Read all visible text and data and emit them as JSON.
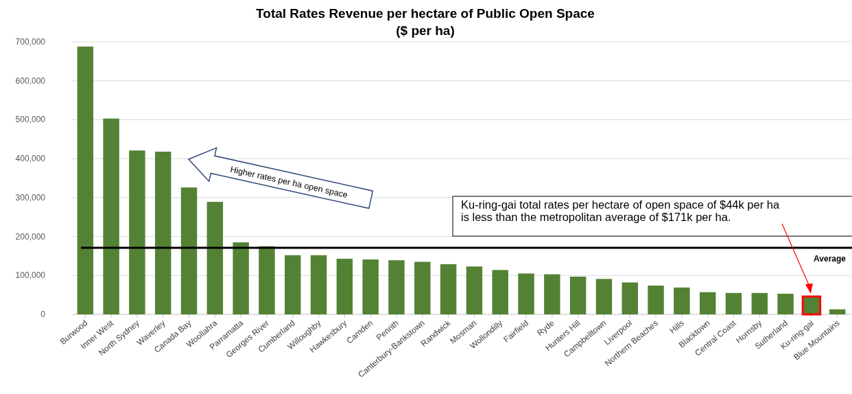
{
  "chart_data": {
    "type": "bar",
    "title": "Total Rates Revenue per hectare of Public Open Space",
    "subtitle": "($ per ha)",
    "categories": [
      "Burwood",
      "Inner West",
      "North Sydney",
      "Waverley",
      "Canada Bay",
      "Woollahra",
      "Parramatta",
      "Georges River",
      "Cumberland",
      "Willoughby",
      "Hawkesbury",
      "Camden",
      "Penrith",
      "Canterbury-Bankstown",
      "Randwick",
      "Mosman",
      "Wollondilly",
      "Fairfield",
      "Ryde",
      "Hunters Hill",
      "Campbelltown",
      "Liverpool",
      "Northern Beaches",
      "Hills",
      "Blacktown",
      "Central Coast",
      "Hornsby",
      "Sutherland",
      "Ku-ring-gai",
      "Blue Mountains"
    ],
    "values": [
      688000,
      503000,
      421000,
      418000,
      326000,
      289000,
      185000,
      175000,
      152000,
      152000,
      143000,
      141000,
      139000,
      135000,
      129000,
      123000,
      114000,
      105000,
      103000,
      97000,
      91000,
      82000,
      74000,
      69000,
      57000,
      55000,
      55000,
      53000,
      44000,
      13000
    ],
    "color": "#548235",
    "ylim": [
      0,
      700000
    ],
    "yticks": [
      {
        "value": 0,
        "label": "0"
      },
      {
        "value": 100000,
        "label": "100,000"
      },
      {
        "value": 200000,
        "label": "200,000"
      },
      {
        "value": 300000,
        "label": "300,000"
      },
      {
        "value": 400000,
        "label": "400,000"
      },
      {
        "value": 500000,
        "label": "500,000"
      },
      {
        "value": 600000,
        "label": "600,000"
      },
      {
        "value": 700000,
        "label": "700,000"
      }
    ],
    "grid": "y",
    "ref_lines": [
      {
        "axis": "y",
        "value": 171000,
        "label": "Average",
        "color": "#000000"
      }
    ],
    "annotations": [
      "Higher rates per ha open space",
      "Ku-ring-gai total rates per hectare of open space of $44k per ha is less than the metropolitan average of $171k per ha."
    ]
  }
}
